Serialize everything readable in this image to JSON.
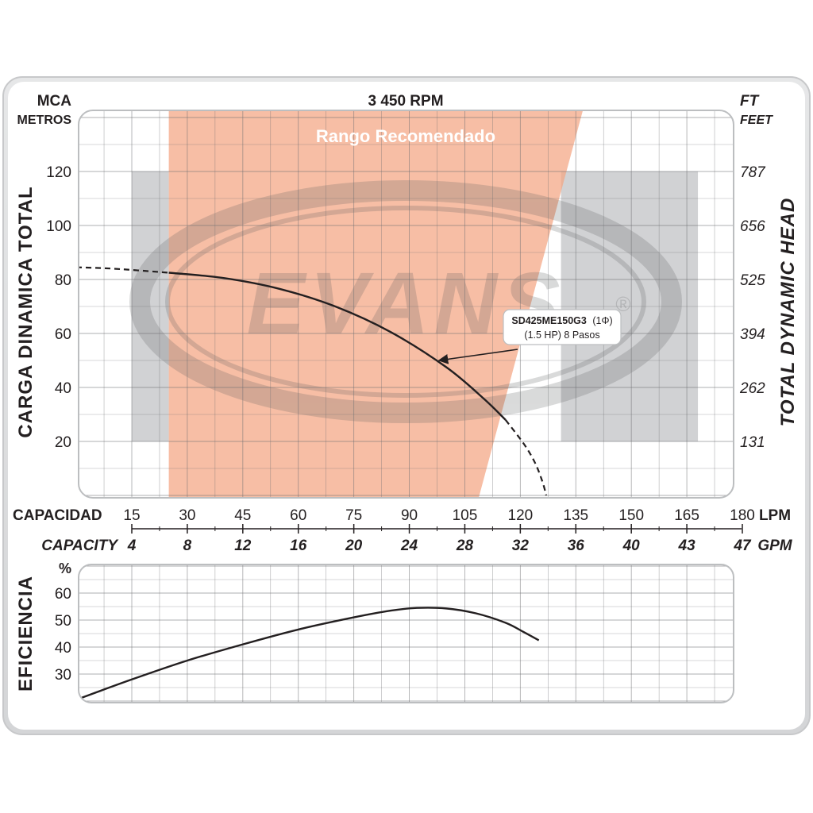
{
  "chart_data": [
    {
      "type": "line",
      "title": "3 450 RPM",
      "xlabel": "CAPACIDAD",
      "xlabel_en": "CAPACITY",
      "x_unit": "LPM",
      "x_unit_en": "GPM",
      "ylabel": "CARGA  DINAMICA  TOTAL",
      "ylabel_en": "TOTAL  DYNAMIC  HEAD",
      "y_unit": "MCA",
      "y_unit_sub": "METROS",
      "y_unit_en": "FT",
      "y_unit_en_sub": "FEET",
      "xlim": [
        0,
        190
      ],
      "ylim": [
        0,
        140
      ],
      "grid": true,
      "x_ticks": [
        15,
        30,
        45,
        60,
        75,
        90,
        105,
        120,
        135,
        150,
        165,
        180
      ],
      "x_ticks_gpm": [
        "4",
        "8",
        "12",
        "16",
        "20",
        "24",
        "28",
        "32",
        "36",
        "40",
        "43",
        "47"
      ],
      "y_ticks": [
        20,
        40,
        60,
        80,
        100,
        120
      ],
      "y_ticks_ft": [
        "131",
        "262",
        "394",
        "525",
        "656",
        "787"
      ],
      "recommended_range": {
        "label": "Rango Recomendado",
        "x_start": 25,
        "x_end_top": 138,
        "x_end_bottom": 108,
        "color": "#f4a582"
      },
      "series": [
        {
          "name": "SD425ME150G3 (1Φ)",
          "values_solid": [
            [
              25,
              82.5
            ],
            [
              40,
              80.5
            ],
            [
              55,
              76.5
            ],
            [
              70,
              70
            ],
            [
              85,
              60.5
            ],
            [
              100,
              47.5
            ],
            [
              110,
              36
            ],
            [
              116,
              28
            ]
          ],
          "values_dashed_left": [
            [
              0,
              84.5
            ],
            [
              10,
              84
            ],
            [
              25,
              82.5
            ]
          ],
          "values_dashed_right": [
            [
              116,
              28
            ],
            [
              121,
              19
            ],
            [
              124,
              12
            ],
            [
              126,
              5
            ],
            [
              127,
              0
            ]
          ]
        }
      ],
      "annotation": {
        "model": "SD425ME150G3",
        "phase": "(1Φ)",
        "line2": "(1.5 HP)  8 Pasos",
        "arrow_to": [
          98,
          50
        ]
      },
      "watermark": "EVANS",
      "shaded_right_region_color": "#d1d2d4"
    },
    {
      "type": "line",
      "ylabel": "EFICIENCIA",
      "y_unit": "%",
      "xlim": [
        0,
        190
      ],
      "ylim": [
        20,
        70
      ],
      "grid": true,
      "y_ticks": [
        30,
        40,
        50,
        60
      ],
      "series": [
        {
          "name": "Eficiencia",
          "values": [
            [
              0,
              20.5
            ],
            [
              15,
              28
            ],
            [
              30,
              35
            ],
            [
              45,
              41
            ],
            [
              60,
              46.5
            ],
            [
              75,
              51
            ],
            [
              85,
              53.5
            ],
            [
              92,
              54.5
            ],
            [
              100,
              54.3
            ],
            [
              108,
              52.5
            ],
            [
              116,
              49
            ],
            [
              121,
              45.5
            ],
            [
              125,
              42.5
            ]
          ]
        }
      ]
    }
  ]
}
